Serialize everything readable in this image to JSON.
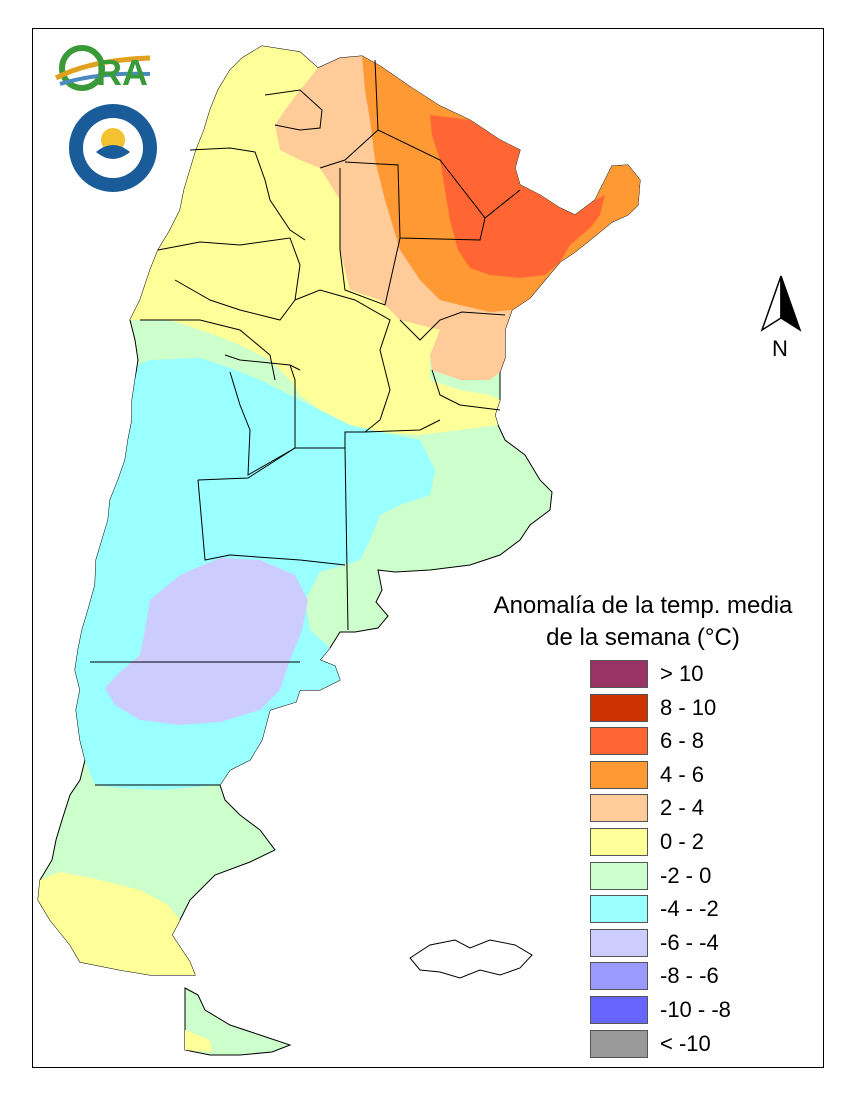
{
  "legend": {
    "title_line1": "Anomalía de la temp. media",
    "title_line2": "de la semana (°C)",
    "items": [
      {
        "label": "> 10",
        "color": "#993366"
      },
      {
        "label": "8 - 10",
        "color": "#cc3300"
      },
      {
        "label": "6 - 8",
        "color": "#ff6633"
      },
      {
        "label": "4 - 6",
        "color": "#ff9933"
      },
      {
        "label": "2 - 4",
        "color": "#ffcc99"
      },
      {
        "label": "0 - 2",
        "color": "#ffff99"
      },
      {
        "label": "-2 - 0",
        "color": "#ccffcc"
      },
      {
        "label": "-4 - -2",
        "color": "#99ffff"
      },
      {
        "label": "-6 - -4",
        "color": "#ccccff"
      },
      {
        "label": "-8 - -6",
        "color": "#9999ff"
      },
      {
        "label": "-10 - -8",
        "color": "#6666ff"
      },
      {
        "label": "< -10",
        "color": "#999999"
      }
    ]
  },
  "north_arrow": {
    "label": "N",
    "icon": "north-arrow-icon"
  },
  "logos": {
    "ora": {
      "text": "ORA",
      "icon": "ora-logo"
    },
    "smn": {
      "icon": "smn-seal"
    }
  }
}
